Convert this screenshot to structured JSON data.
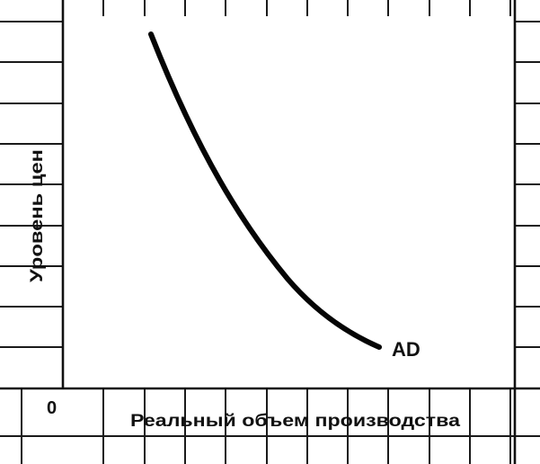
{
  "diagram": {
    "origin_label": "0",
    "x_axis_label": "Реальный объем производства",
    "y_axis_label": "Уровень цен",
    "curve_label": "AD",
    "curve_type": "downward-sloping, convex"
  }
}
